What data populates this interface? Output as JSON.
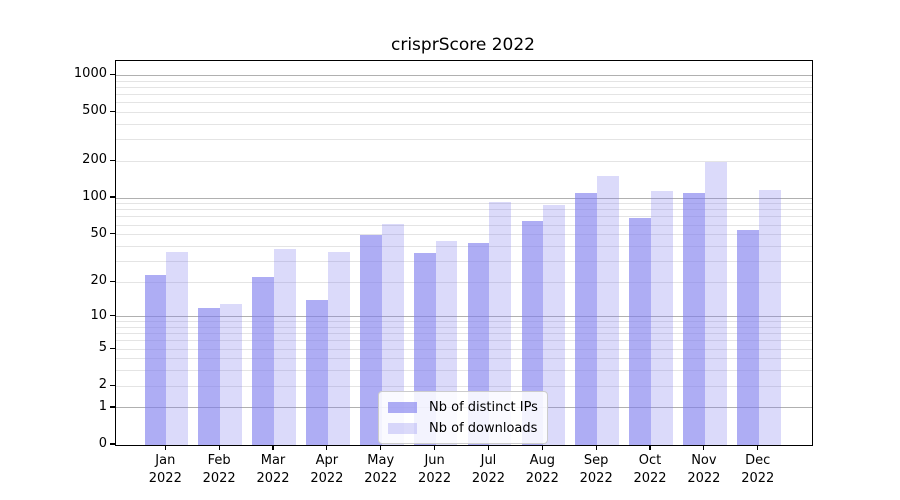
{
  "title": "crisprScore 2022",
  "colors": {
    "bar_ips": "rgba(124,122,237,0.62)",
    "bar_downloads": "rgba(124,122,237,0.28)",
    "grid_major": "#b0b0b0",
    "grid_minor": "#e4e4e4",
    "axis": "#000000"
  },
  "legend": {
    "items": [
      {
        "label": "Nb of distinct IPs",
        "series": "ips"
      },
      {
        "label": "Nb of downloads",
        "series": "downloads"
      }
    ]
  },
  "chart_data": {
    "type": "bar",
    "title": "crisprScore 2022",
    "scale": "log10(1+y)",
    "categories": [
      "Jan 2022",
      "Feb 2022",
      "Mar 2022",
      "Apr 2022",
      "May 2022",
      "Jun 2022",
      "Jul 2022",
      "Aug 2022",
      "Sep 2022",
      "Oct 2022",
      "Nov 2022",
      "Dec 2022"
    ],
    "x_tick_labels": [
      {
        "month": "Jan",
        "year": "2022"
      },
      {
        "month": "Feb",
        "year": "2022"
      },
      {
        "month": "Mar",
        "year": "2022"
      },
      {
        "month": "Apr",
        "year": "2022"
      },
      {
        "month": "May",
        "year": "2022"
      },
      {
        "month": "Jun",
        "year": "2022"
      },
      {
        "month": "Jul",
        "year": "2022"
      },
      {
        "month": "Aug",
        "year": "2022"
      },
      {
        "month": "Sep",
        "year": "2022"
      },
      {
        "month": "Oct",
        "year": "2022"
      },
      {
        "month": "Nov",
        "year": "2022"
      },
      {
        "month": "Dec",
        "year": "2022"
      }
    ],
    "series": [
      {
        "name": "Nb of distinct IPs",
        "values": [
          23,
          12,
          22,
          14,
          50,
          35,
          43,
          65,
          111,
          69,
          111,
          55
        ]
      },
      {
        "name": "Nb of downloads",
        "values": [
          36,
          13,
          38,
          36,
          61,
          44,
          93,
          87,
          152,
          115,
          196,
          117
        ]
      }
    ],
    "yticks": [
      {
        "value": 1000,
        "label": "1000"
      },
      {
        "value": 500,
        "label": "500"
      },
      {
        "value": 200,
        "label": "200"
      },
      {
        "value": 100,
        "label": "100"
      },
      {
        "value": 50,
        "label": "50"
      },
      {
        "value": 20,
        "label": "20"
      },
      {
        "value": 10,
        "label": "10"
      },
      {
        "value": 5,
        "label": "5"
      },
      {
        "value": 2,
        "label": "2"
      },
      {
        "value": 1,
        "label": "1"
      },
      {
        "value": 0,
        "label": "0"
      }
    ],
    "y_major_gridlines": [
      1,
      10,
      100,
      1000
    ],
    "ylim": [
      0,
      1308
    ],
    "grid": "both",
    "legend_position": "lower center"
  }
}
